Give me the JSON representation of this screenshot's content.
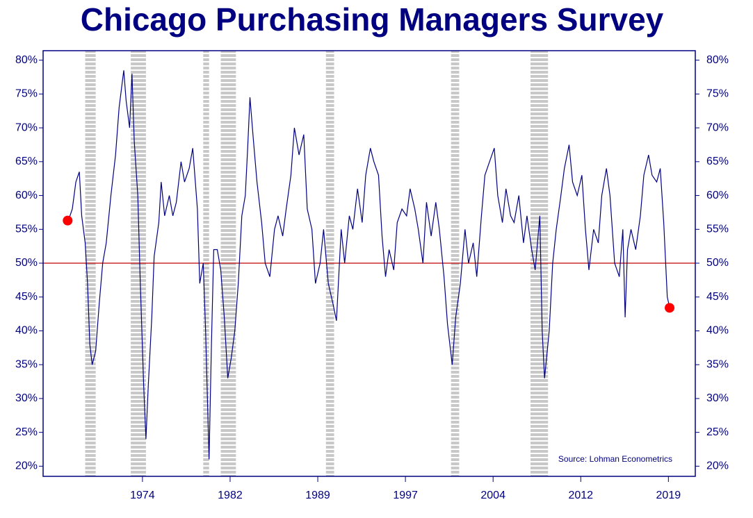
{
  "chart_data": {
    "type": "line",
    "title": "Chicago Purchasing Managers Survey",
    "source": "Source: Lohman Econometrics",
    "series": [
      {
        "color": "#000080",
        "x": [
          1968.1,
          1968.5,
          1968.8,
          1969.1,
          1969.3,
          1969.6,
          1969.8,
          1970.0,
          1970.2,
          1970.5,
          1970.8,
          1971.1,
          1971.4,
          1971.8,
          1972.2,
          1972.5,
          1972.9,
          1973.1,
          1973.4,
          1973.6,
          1973.8,
          1974.1,
          1974.3,
          1974.6,
          1974.8,
          1975.0,
          1975.3,
          1975.5,
          1975.9,
          1976.1,
          1976.4,
          1976.8,
          1977.1,
          1977.4,
          1977.8,
          1978.1,
          1978.5,
          1978.8,
          1979.2,
          1979.4,
          1979.7,
          1979.9,
          1980.2,
          1980.4,
          1980.6,
          1980.9,
          1981.2,
          1981.5,
          1981.8,
          1982.1,
          1982.4,
          1982.7,
          1983.0,
          1983.3,
          1983.5,
          1983.7,
          1984.0,
          1984.3,
          1984.7,
          1985.0,
          1985.4,
          1985.8,
          1986.1,
          1986.5,
          1986.8,
          1987.2,
          1987.5,
          1987.9,
          1988.3,
          1988.6,
          1989.0,
          1989.3,
          1989.7,
          1990.0,
          1990.4,
          1990.8,
          1991.1,
          1991.5,
          1991.8,
          1992.2,
          1992.5,
          1992.9,
          1993.3,
          1993.6,
          1994.0,
          1994.3,
          1994.7,
          1995.0,
          1995.3,
          1995.6,
          1996.0,
          1996.3,
          1996.7,
          1997.1,
          1997.4,
          1997.8,
          1998.1,
          1998.5,
          1998.8,
          1999.2,
          1999.6,
          1999.9,
          2000.3,
          2000.6,
          2001.0,
          2001.3,
          2001.7,
          2002.1,
          2002.4,
          2002.8,
          2003.1,
          2003.5,
          2003.8,
          2004.2,
          2004.6,
          2004.9,
          2005.3,
          2005.6,
          2006.0,
          2006.3,
          2006.7,
          2007.1,
          2007.4,
          2007.8,
          2008.1,
          2008.5,
          2008.7,
          2008.9,
          2009.3,
          2009.6,
          2009.9,
          2010.3,
          2010.6,
          2011.0,
          2011.3,
          2011.7,
          2012.1,
          2012.4,
          2012.7,
          2013.1,
          2013.5,
          2013.8,
          2014.2,
          2014.5,
          2014.9,
          2015.3,
          2015.6,
          2015.8,
          2016.0,
          2016.3,
          2016.7,
          2017.1,
          2017.4,
          2017.8,
          2018.1,
          2018.5,
          2018.8,
          2019.1,
          2019.4,
          2019.6
        ],
        "values": [
          56,
          58,
          62,
          63.5,
          57,
          53,
          47,
          38,
          35,
          37,
          44,
          50,
          53,
          60,
          66,
          73,
          78.5,
          74,
          70,
          78,
          68,
          60,
          48,
          32,
          24,
          32,
          42,
          51,
          56,
          62,
          57,
          60,
          57,
          59,
          65,
          62,
          64,
          67,
          58,
          47,
          50,
          40,
          21,
          38,
          52,
          52,
          49,
          42,
          33,
          36,
          40,
          47,
          57,
          60,
          67,
          74.5,
          68,
          62,
          56,
          50,
          48,
          55,
          57,
          54,
          58,
          63,
          70,
          66,
          69,
          58,
          55,
          47,
          50,
          55,
          47,
          44,
          41.5,
          55,
          50,
          57,
          55,
          61,
          56,
          63,
          67,
          65,
          63,
          54,
          48,
          52,
          49,
          56,
          58,
          57,
          61,
          58,
          55,
          50,
          59,
          54,
          59,
          55,
          48,
          41,
          35,
          42,
          47,
          55,
          50,
          53,
          48,
          57,
          63,
          65,
          67,
          60,
          56,
          61,
          57,
          56,
          60,
          53,
          57,
          52,
          49,
          57,
          40,
          33,
          40,
          50,
          55,
          60,
          64,
          67.5,
          62,
          60,
          63,
          55,
          49,
          55,
          53,
          60,
          64,
          60,
          50,
          48,
          55,
          42,
          52,
          55,
          52,
          57,
          63,
          66,
          63,
          62,
          64,
          56,
          45,
          43.5
        ]
      }
    ],
    "markers": {
      "x": [
        1968.1,
        2019.6
      ],
      "values": [
        56.3,
        43.4
      ],
      "color": "#ff0000"
    },
    "reference_line": 50,
    "reference_color": "#c00000",
    "recessions": [
      [
        1969.6,
        1970.5
      ],
      [
        1973.5,
        1974.8
      ],
      [
        1979.7,
        1980.2
      ],
      [
        1981.2,
        1982.5
      ],
      [
        1990.2,
        1990.9
      ],
      [
        2000.9,
        2001.6
      ],
      [
        2007.7,
        2009.2
      ]
    ],
    "xlim": [
      1966,
      2021.8
    ],
    "xticks": [
      {
        "value": 1974.5,
        "label": "1974"
      },
      1982,
      {
        "value": 1989.5,
        "label": "1989"
      },
      1997,
      {
        "value": 2004.5,
        "label": "2004"
      },
      2012,
      {
        "value": 2019.5,
        "label": "2019"
      }
    ],
    "ylim": [
      18.5,
      81.4
    ],
    "yticks": [
      {
        "value": 20,
        "label": "20%"
      },
      {
        "value": 25,
        "label": "25%"
      },
      {
        "value": 30,
        "label": "30%"
      },
      {
        "value": 35,
        "label": "35%"
      },
      {
        "value": 40,
        "label": "40%"
      },
      {
        "value": 45,
        "label": "45%"
      },
      {
        "value": 50,
        "label": "50%"
      },
      {
        "value": 55,
        "label": "55%"
      },
      {
        "value": 60,
        "label": "60%"
      },
      {
        "value": 65,
        "label": "65%"
      },
      {
        "value": 70,
        "label": "70%"
      },
      {
        "value": 75,
        "label": "75%"
      },
      {
        "value": 80,
        "label": "80%"
      }
    ],
    "y2lim": [
      18.5,
      81.4
    ],
    "y2ticks": [
      {
        "value": 20,
        "label": "20%"
      },
      {
        "value": 25,
        "label": "25%"
      },
      {
        "value": 30,
        "label": "30%"
      },
      {
        "value": 35,
        "label": "35%"
      },
      {
        "value": 40,
        "label": "40%"
      },
      {
        "value": 45,
        "label": "45%"
      },
      {
        "value": 50,
        "label": "50%"
      },
      {
        "value": 55,
        "label": "55%"
      },
      {
        "value": 60,
        "label": "60%"
      },
      {
        "value": 65,
        "label": "65%"
      },
      {
        "value": 70,
        "label": "70%"
      },
      {
        "value": 75,
        "label": "75%"
      },
      {
        "value": 80,
        "label": "80%"
      }
    ]
  }
}
